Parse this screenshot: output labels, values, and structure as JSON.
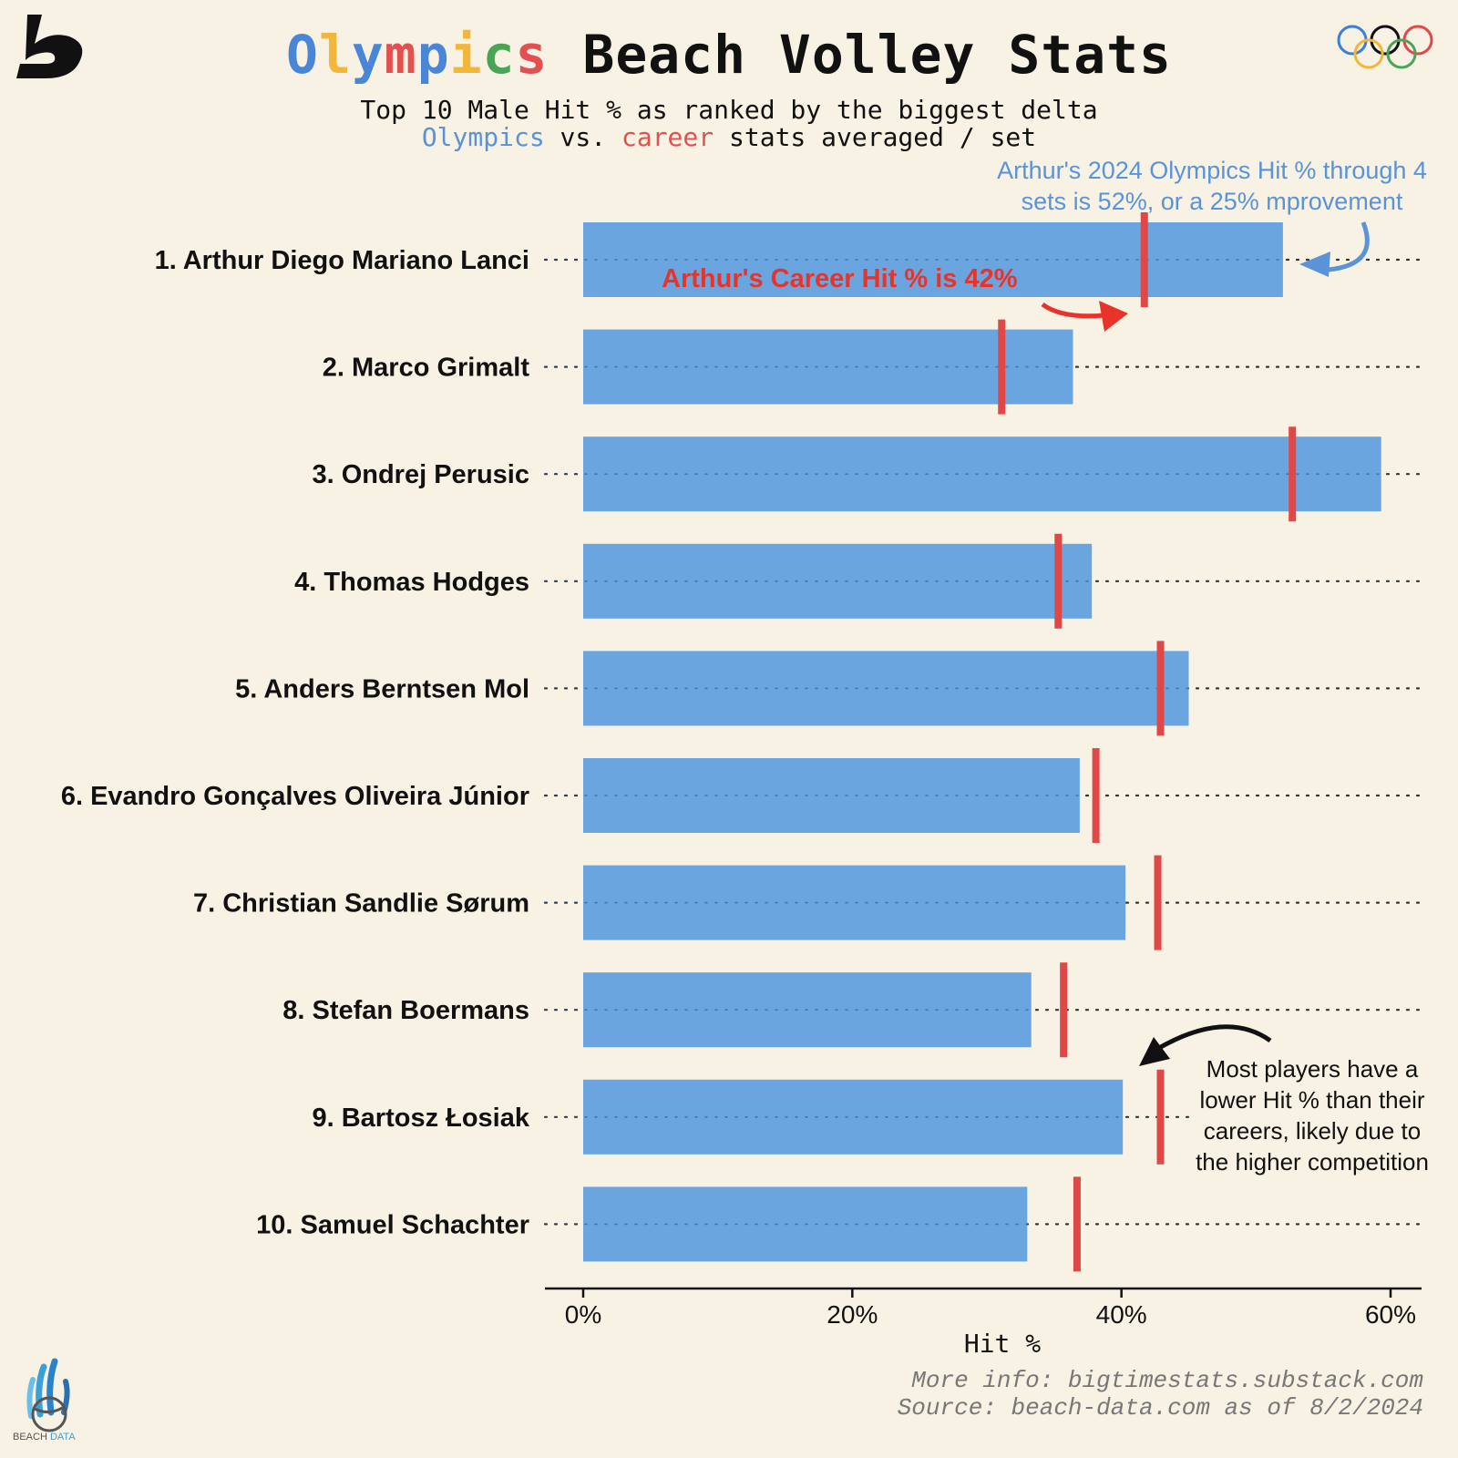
{
  "header": {
    "title_word1_letters": [
      "O",
      "l",
      "y",
      "m",
      "p",
      "i",
      "c",
      "s"
    ],
    "title_word1_colors": [
      "#4a86d8",
      "#f2b73a",
      "#4a86d8",
      "#e35050",
      "#4a86d8",
      "#f2b73a",
      "#4aa455",
      "#e35050"
    ],
    "title_rest": "Beach Volley Stats",
    "subtitle_line1": "Top 10 Male Hit % as ranked by the biggest delta",
    "subtitle_olympics": "Olympics",
    "subtitle_vs": " vs. ",
    "subtitle_career": "career",
    "subtitle_rest": " stats averaged / set"
  },
  "annotations": {
    "blue": "Arthur's 2024 Olympics Hit % through 4 sets is 52%, or a 25% mprovement",
    "red": "Arthur's Career Hit % is 42%",
    "black": "Most players have a lower Hit % than their careers, likely due to the higher competition"
  },
  "footer": {
    "line1": "More info: bigtimestats.substack.com",
    "line2": "Source: beach-data.com as of 8/2/2024"
  },
  "logos": {
    "left_top": "s-logo",
    "right_top": "olympic-rings-icon",
    "bottom_left_text_1": "BEACH",
    "bottom_left_text_2": "DATA"
  },
  "colors": {
    "olympics_bar": "#6aa5e0",
    "career_marker": "#e04848",
    "background": "#f7f2e4"
  },
  "chart_data": {
    "type": "bar",
    "orientation": "horizontal",
    "title": "Olympics Beach Volley Stats",
    "xlabel": "Hit %",
    "ylabel": "",
    "xlim": [
      0,
      0.62
    ],
    "xticks": [
      0,
      0.2,
      0.4,
      0.6
    ],
    "xtick_labels": [
      "0%",
      "20%",
      "40%",
      "60%"
    ],
    "categories": [
      "1. Arthur Diego Mariano Lanci",
      "2. Marco Grimalt",
      "3. Ondrej Perusic",
      "4. Thomas Hodges",
      "5. Anders Berntsen Mol",
      "6. Evandro Gonçalves Oliveira Júnior",
      "7. Christian Sandlie Sørum",
      "8. Stefan Boermans",
      "9. Bartosz Łosiak",
      "10. Samuel Schachter"
    ],
    "series": [
      {
        "name": "Olympics",
        "type": "bar",
        "values": [
          0.52,
          0.364,
          0.593,
          0.378,
          0.45,
          0.369,
          0.403,
          0.333,
          0.401,
          0.33
        ]
      },
      {
        "name": "career",
        "type": "marker",
        "values": [
          0.417,
          0.311,
          0.527,
          0.353,
          0.429,
          0.381,
          0.427,
          0.357,
          0.429,
          0.367
        ]
      }
    ],
    "grid": "dotted row guides"
  }
}
